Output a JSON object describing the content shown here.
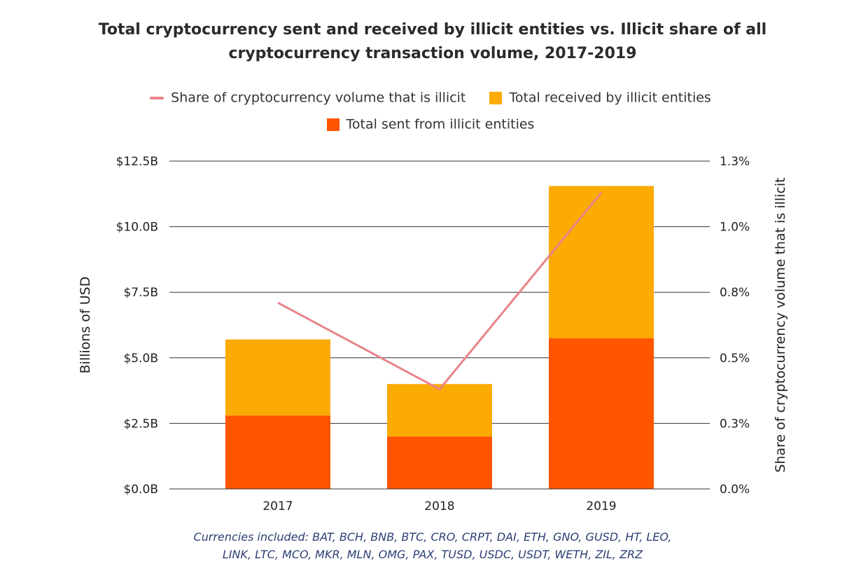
{
  "chart_data": {
    "type": "bar",
    "stacked": true,
    "title": "Total cryptocurrency sent and received by illicit entities vs. Illicit share of all cryptocurrency transaction volume, 2017-2019",
    "title_lines": [
      "Total cryptocurrency sent and received by illicit entities vs. Illicit share of all",
      "cryptocurrency transaction volume, 2017-2019"
    ],
    "categories": [
      "2017",
      "2018",
      "2019"
    ],
    "series": [
      {
        "name": "Total sent from illicit entities",
        "type": "bar",
        "axis": "left",
        "color": "#ff5500",
        "values": [
          2.8,
          2.0,
          5.75
        ]
      },
      {
        "name": "Total received by illicit entities",
        "type": "bar",
        "axis": "left",
        "color": "#fbab01",
        "values": [
          2.9,
          2.0,
          5.8
        ]
      },
      {
        "name": "Share of cryptocurrency volume that is illicit",
        "type": "line",
        "axis": "right",
        "color": "#e8848a",
        "values": [
          0.71,
          0.38,
          1.13
        ]
      }
    ],
    "ylabel": "Billions of USD",
    "ylabel_right": "Share of cryptocurrency volume that is illicit",
    "ylim": [
      0,
      12.5
    ],
    "ylim_right": [
      0,
      1.25
    ],
    "y_ticks": [
      0,
      2.5,
      5.0,
      7.5,
      10.0,
      12.5
    ],
    "y_tick_labels": [
      "$0.0B",
      "$2.5B",
      "$5.0B",
      "$7.5B",
      "$10.0B",
      "$12.5B"
    ],
    "y_right_tick_labels": [
      "0.0%",
      "0.3%",
      "0.5%",
      "0.8%",
      "1.0%",
      "1.3%"
    ],
    "grid": "horizontal",
    "legend_position": "top",
    "legend": {
      "row1": [
        "Share of cryptocurrency volume that is illicit",
        "Total received by illicit entities"
      ],
      "row2": [
        "Total sent from illicit entities"
      ]
    },
    "footnote_lines": [
      "Currencies included: BAT, BCH, BNB, BTC, CRO, CRPT, DAI, ETH, GNO, GUSD, HT, LEO,",
      "LINK, LTC, MCO, MKR, MLN, OMG, PAX, TUSD, USDC, USDT, WETH, ZIL, ZRZ"
    ],
    "colors": {
      "grid": "#333333",
      "text": "#222222",
      "footnote": "#2c3f73"
    }
  }
}
